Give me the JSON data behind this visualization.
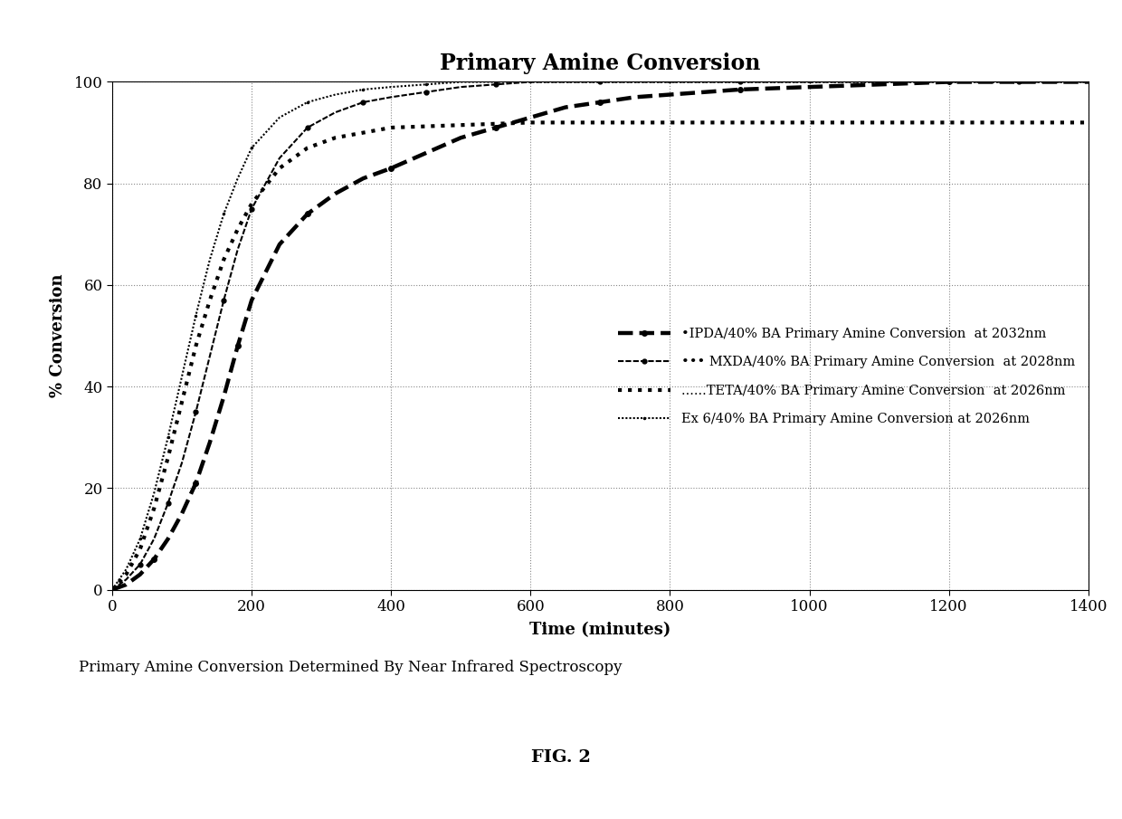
{
  "title": "Primary Amine Conversion",
  "xlabel": "Time (minutes)",
  "ylabel": "% Conversion",
  "xlim": [
    0,
    1400
  ],
  "ylim": [
    0,
    100
  ],
  "xticks": [
    0,
    200,
    400,
    600,
    800,
    1000,
    1200,
    1400
  ],
  "yticks": [
    0,
    20,
    40,
    60,
    80,
    100
  ],
  "caption": "Primary Amine Conversion Determined By Near Infrared Spectroscopy",
  "fig_label": "FIG. 2",
  "background_color": "#ffffff",
  "series": [
    {
      "label": "•IPDA/40% BA Primary Amine Conversion  at 2032nm",
      "x": [
        0,
        20,
        40,
        60,
        80,
        100,
        120,
        140,
        160,
        180,
        200,
        240,
        280,
        320,
        360,
        400,
        450,
        500,
        550,
        600,
        650,
        700,
        750,
        800,
        900,
        1000,
        1100,
        1200,
        1300,
        1400
      ],
      "y": [
        0,
        1,
        3,
        6,
        10,
        15,
        21,
        29,
        38,
        48,
        57,
        68,
        74,
        78,
        81,
        83,
        86,
        89,
        91,
        93,
        95,
        96,
        97,
        97.5,
        98.5,
        99,
        99.5,
        100,
        100,
        100
      ]
    },
    {
      "label": "••• MXDA/40% BA Primary Amine Conversion  at 2028nm",
      "x": [
        0,
        20,
        40,
        60,
        80,
        100,
        120,
        140,
        160,
        180,
        200,
        240,
        280,
        320,
        360,
        400,
        450,
        500,
        550,
        600,
        700,
        800,
        900,
        1000,
        1100,
        1200,
        1300,
        1400
      ],
      "y": [
        0,
        2,
        5,
        10,
        17,
        25,
        35,
        46,
        57,
        67,
        75,
        85,
        91,
        94,
        96,
        97,
        98,
        99,
        99.5,
        100,
        100,
        100,
        100,
        100,
        100,
        100,
        100,
        100
      ]
    },
    {
      "label": "......TETA/40% BA Primary Amine Conversion  at 2026nm",
      "x": [
        0,
        20,
        40,
        60,
        80,
        100,
        120,
        140,
        160,
        180,
        200,
        240,
        280,
        320,
        360,
        400,
        500,
        600,
        700,
        800,
        900,
        1000,
        1100,
        1200,
        1300,
        1400
      ],
      "y": [
        0,
        3,
        8,
        16,
        26,
        37,
        48,
        57,
        65,
        71,
        76,
        83,
        87,
        89,
        90,
        91,
        91.5,
        92,
        92,
        92,
        92,
        92,
        92,
        92,
        92,
        92
      ]
    },
    {
      "label": "Ex 6/40% BA Primary Amine Conversion at 2026nm",
      "x": [
        0,
        20,
        40,
        60,
        80,
        100,
        120,
        140,
        160,
        180,
        200,
        240,
        280,
        320,
        360,
        400,
        450,
        500,
        600,
        700,
        800,
        900,
        1000,
        1100,
        1200,
        1300,
        1400
      ],
      "y": [
        0,
        4,
        10,
        19,
        30,
        42,
        54,
        65,
        74,
        81,
        87,
        93,
        96,
        97.5,
        98.5,
        99,
        99.5,
        100,
        100,
        100,
        100,
        100,
        100,
        100,
        100,
        100,
        100
      ]
    }
  ]
}
